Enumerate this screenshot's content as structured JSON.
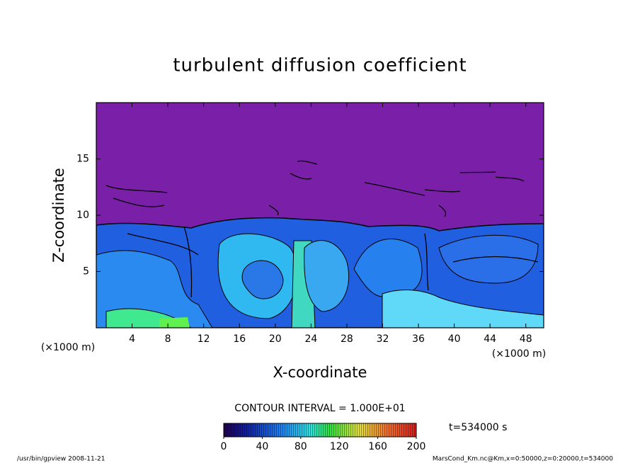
{
  "chart_data": {
    "type": "contour",
    "title": "turbulent diffusion coefficient",
    "x_label": "X-coordinate",
    "y_label": "Z-coordinate",
    "x_unit": "(×1000 m)",
    "y_unit": "(×1000 m)",
    "xlim": [
      0,
      50
    ],
    "xticks": [
      4,
      8,
      12,
      16,
      20,
      24,
      28,
      32,
      36,
      40,
      44,
      48
    ],
    "ylim": [
      0,
      20
    ],
    "yticks": [
      5,
      10,
      15
    ],
    "contour_interval": "CONTOUR INTERVAL = 1.000E+01",
    "colorbar": {
      "lim": [
        0,
        200
      ],
      "ticks": [
        0,
        40,
        80,
        120,
        160,
        200
      ]
    },
    "time_label": "t=534000 s",
    "footer_left": "/usr/bin/gpview   2008-11-21",
    "footer_right": "MarsCond_Km.nc@Km,x=0:50000,z=0:20000,t=534000"
  }
}
